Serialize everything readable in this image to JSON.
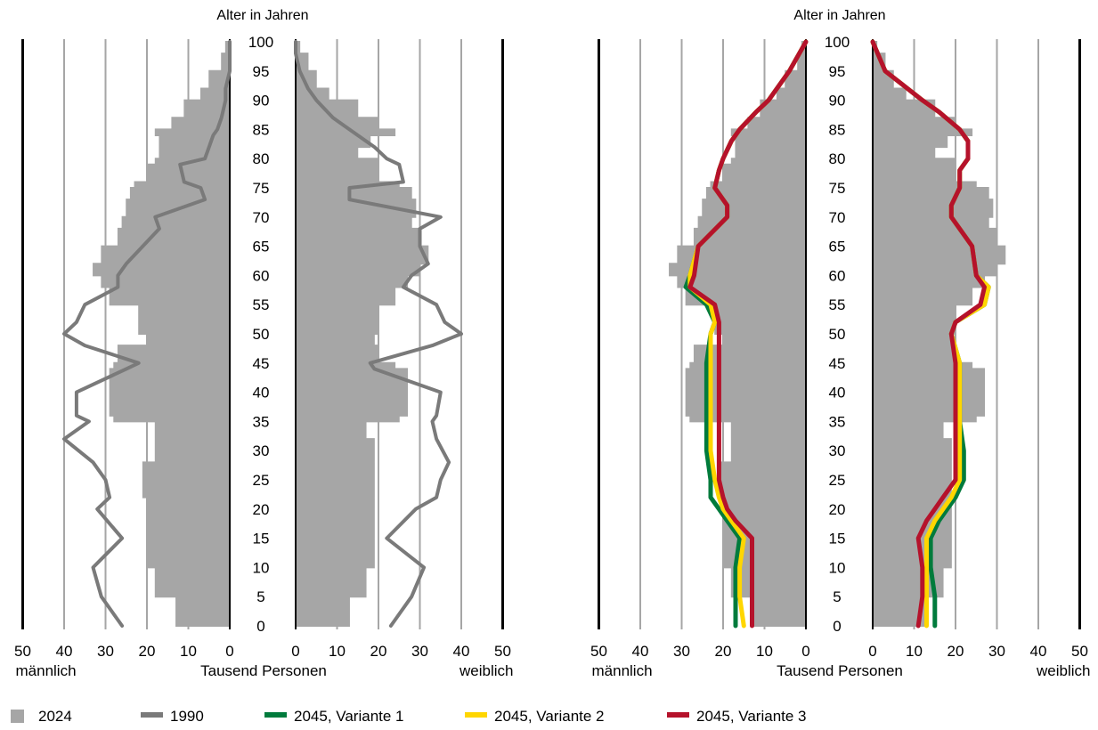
{
  "colors": {
    "bars_2024": "#a6a6a6",
    "line_1990": "#7a7a7a",
    "variant1": "#007b3c",
    "variant2": "#ffd600",
    "variant3": "#b5122b",
    "grid": "#a6a6a6",
    "edge": "#000000"
  },
  "labels": {
    "age_axis": "Alter in Jahren",
    "center_axis": "Tausend Personen",
    "male": "männlich",
    "female": "weiblich"
  },
  "legend": [
    {
      "key": "2024",
      "label": "2024",
      "shape": "square",
      "color": "#a6a6a6"
    },
    {
      "key": "1990",
      "label": "1990",
      "shape": "line",
      "color": "#7a7a7a"
    },
    {
      "key": "v1",
      "label": "2045, Variante 1",
      "shape": "line",
      "color": "#007b3c"
    },
    {
      "key": "v2",
      "label": "2045, Variante 2",
      "shape": "line",
      "color": "#ffd600"
    },
    {
      "key": "v3",
      "label": "2045, Variante 3",
      "shape": "line",
      "color": "#b5122b"
    }
  ],
  "chart_data": [
    {
      "type": "bar",
      "orientation": "population-pyramid",
      "ylabel": "Alter in Jahren",
      "xlabel": "Tausend Personen",
      "age_ticks": [
        0,
        5,
        10,
        15,
        20,
        25,
        30,
        35,
        40,
        45,
        50,
        55,
        60,
        65,
        70,
        75,
        80,
        85,
        90,
        95,
        100
      ],
      "x_ticks_male": [
        50,
        40,
        30,
        20,
        10,
        0
      ],
      "x_ticks_female": [
        0,
        10,
        20,
        30,
        40,
        50
      ],
      "xlim": [
        0,
        50
      ],
      "grid": true,
      "ages": [
        0,
        5,
        10,
        15,
        20,
        22,
        25,
        28,
        32,
        35,
        36,
        40,
        44,
        45,
        48,
        50,
        52,
        55,
        58,
        60,
        62,
        65,
        68,
        70,
        73,
        75,
        76,
        79,
        80,
        82,
        84,
        85,
        87,
        90,
        92,
        95,
        98,
        100
      ],
      "series": [
        {
          "name": "2024",
          "kind": "bars",
          "sex": "male",
          "values": [
            13,
            18,
            20,
            20,
            20,
            21,
            21,
            18,
            18,
            28,
            29,
            29,
            28,
            27,
            20,
            22,
            22,
            29,
            31,
            33,
            31,
            27,
            26,
            25,
            24,
            23,
            20,
            18,
            17,
            17,
            18,
            14,
            11,
            7,
            5,
            2,
            1,
            0
          ]
        },
        {
          "name": "2024",
          "kind": "bars",
          "sex": "female",
          "values": [
            13,
            17,
            19,
            19,
            19,
            19,
            19,
            19,
            17,
            25,
            27,
            27,
            24,
            20,
            19,
            20,
            20,
            24,
            27,
            30,
            32,
            30,
            28,
            29,
            28,
            25,
            20,
            20,
            15,
            18,
            24,
            20,
            15,
            8,
            5,
            3,
            1,
            0
          ]
        },
        {
          "name": "1990",
          "kind": "line",
          "sex": "male",
          "values": [
            26,
            31,
            33,
            26,
            32,
            29,
            30,
            33,
            40,
            34,
            37,
            37,
            25,
            22,
            35,
            40,
            37,
            35,
            27,
            27,
            25,
            21,
            17,
            18,
            6,
            7,
            11,
            12,
            6,
            5,
            4,
            3,
            2,
            1,
            1,
            0,
            0,
            0
          ]
        },
        {
          "name": "1990",
          "kind": "line",
          "sex": "female",
          "values": [
            23,
            28,
            31,
            22,
            29,
            34,
            35,
            37,
            34,
            33,
            34,
            35,
            19,
            18,
            33,
            40,
            36,
            34,
            26,
            28,
            32,
            30,
            30,
            35,
            13,
            13,
            26,
            25,
            22,
            19,
            15,
            13,
            9,
            5,
            3,
            1,
            0,
            0
          ]
        }
      ]
    },
    {
      "type": "bar",
      "orientation": "population-pyramid",
      "ylabel": "Alter in Jahren",
      "xlabel": "Tausend Personen",
      "age_ticks": [
        0,
        5,
        10,
        15,
        20,
        25,
        30,
        35,
        40,
        45,
        50,
        55,
        60,
        65,
        70,
        75,
        80,
        85,
        90,
        95,
        100
      ],
      "x_ticks_male": [
        50,
        40,
        30,
        20,
        10,
        0
      ],
      "x_ticks_female": [
        0,
        10,
        20,
        30,
        40,
        50
      ],
      "xlim": [
        0,
        50
      ],
      "grid": true,
      "ages": [
        0,
        5,
        10,
        15,
        20,
        22,
        25,
        28,
        32,
        35,
        36,
        40,
        44,
        45,
        48,
        50,
        52,
        55,
        58,
        60,
        62,
        65,
        68,
        70,
        73,
        75,
        76,
        79,
        80,
        82,
        84,
        85,
        87,
        90,
        92,
        95,
        98,
        100
      ],
      "bars_male_2024": [
        13,
        18,
        20,
        20,
        20,
        21,
        21,
        18,
        18,
        28,
        29,
        29,
        28,
        27,
        20,
        22,
        22,
        29,
        31,
        33,
        31,
        27,
        26,
        25,
        24,
        23,
        20,
        18,
        17,
        17,
        18,
        14,
        11,
        7,
        5,
        2,
        1,
        0
      ],
      "bars_female_2024": [
        13,
        17,
        19,
        19,
        19,
        19,
        19,
        19,
        17,
        25,
        27,
        27,
        24,
        20,
        19,
        20,
        20,
        24,
        27,
        30,
        32,
        30,
        28,
        29,
        28,
        25,
        20,
        20,
        15,
        18,
        24,
        20,
        15,
        8,
        5,
        3,
        1,
        0
      ],
      "ages_2045": [
        0,
        5,
        10,
        15,
        18,
        20,
        22,
        25,
        30,
        35,
        40,
        45,
        50,
        52,
        55,
        58,
        60,
        65,
        70,
        72,
        75,
        78,
        80,
        83,
        85,
        88,
        90,
        95,
        100
      ],
      "series": [
        {
          "name": "2045, Variante 1",
          "sex": "male",
          "values": [
            17,
            17,
            17,
            16,
            19,
            21,
            23,
            23,
            24,
            24,
            24,
            24,
            23,
            22,
            24,
            29,
            28,
            26,
            19,
            19,
            22,
            21,
            20,
            18,
            16,
            12,
            9,
            4,
            0
          ]
        },
        {
          "name": "2045, Variante 2",
          "sex": "male",
          "values": [
            15,
            16,
            16,
            15,
            18,
            20,
            21,
            22,
            23,
            23,
            23,
            23,
            23,
            22,
            23,
            28,
            28,
            26,
            19,
            19,
            22,
            21,
            20,
            18,
            16,
            12,
            9,
            4,
            0
          ]
        },
        {
          "name": "2045, Variante 3",
          "sex": "male",
          "values": [
            13,
            13,
            13,
            13,
            17,
            19,
            20,
            21,
            21,
            21,
            21,
            21,
            21,
            21,
            22,
            28,
            27,
            26,
            19,
            19,
            22,
            21,
            20,
            18,
            16,
            12,
            9,
            4,
            0
          ]
        },
        {
          "name": "2045, Variante 1",
          "sex": "female",
          "values": [
            15,
            15,
            14,
            14,
            16,
            18,
            20,
            22,
            22,
            21,
            21,
            21,
            19,
            20,
            27,
            28,
            25,
            24,
            19,
            19,
            21,
            21,
            23,
            23,
            21,
            16,
            12,
            3,
            0
          ]
        },
        {
          "name": "2045, Variante 2",
          "sex": "female",
          "values": [
            13,
            13,
            13,
            13,
            15,
            17,
            19,
            21,
            21,
            21,
            21,
            21,
            19,
            20,
            27,
            28,
            25,
            24,
            19,
            19,
            21,
            21,
            23,
            23,
            21,
            16,
            12,
            3,
            0
          ]
        },
        {
          "name": "2045, Variante 3",
          "sex": "female",
          "values": [
            11,
            12,
            12,
            11,
            13,
            15,
            17,
            20,
            20,
            20,
            20,
            20,
            19,
            20,
            26,
            27,
            25,
            24,
            19,
            19,
            21,
            21,
            23,
            23,
            21,
            16,
            12,
            3,
            0
          ]
        }
      ]
    }
  ]
}
